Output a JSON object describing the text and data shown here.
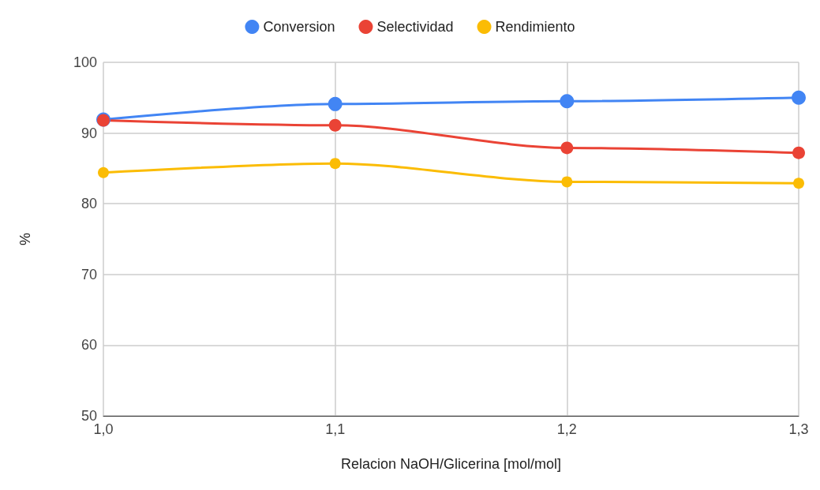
{
  "chart_data": {
    "type": "line",
    "xlabel": "Relacion NaOH/Glicerina [mol/mol]",
    "ylabel": "%",
    "x": [
      1.0,
      1.1,
      1.2,
      1.3
    ],
    "series": [
      {
        "name": "Conversion",
        "color": "#4285f4",
        "values": [
          91.9,
          94.1,
          94.5,
          95.0
        ]
      },
      {
        "name": "Selectividad",
        "color": "#ea4335",
        "values": [
          91.8,
          91.1,
          87.9,
          87.2
        ]
      },
      {
        "name": "Rendimiento",
        "color": "#fbbc04",
        "values": [
          84.4,
          85.7,
          83.1,
          82.9
        ]
      }
    ],
    "xlim": [
      1.0,
      1.3
    ],
    "xticks": [
      {
        "value": 1.0,
        "label": "1,0"
      },
      {
        "value": 1.1,
        "label": "1,1"
      },
      {
        "value": 1.2,
        "label": "1,2"
      },
      {
        "value": 1.3,
        "label": "1,3"
      }
    ],
    "ylim": [
      50,
      100
    ],
    "yticks": [
      50,
      60,
      70,
      80,
      90,
      100
    ],
    "grid": true,
    "legend": "top",
    "marker": "circle",
    "line_style": "solid"
  }
}
